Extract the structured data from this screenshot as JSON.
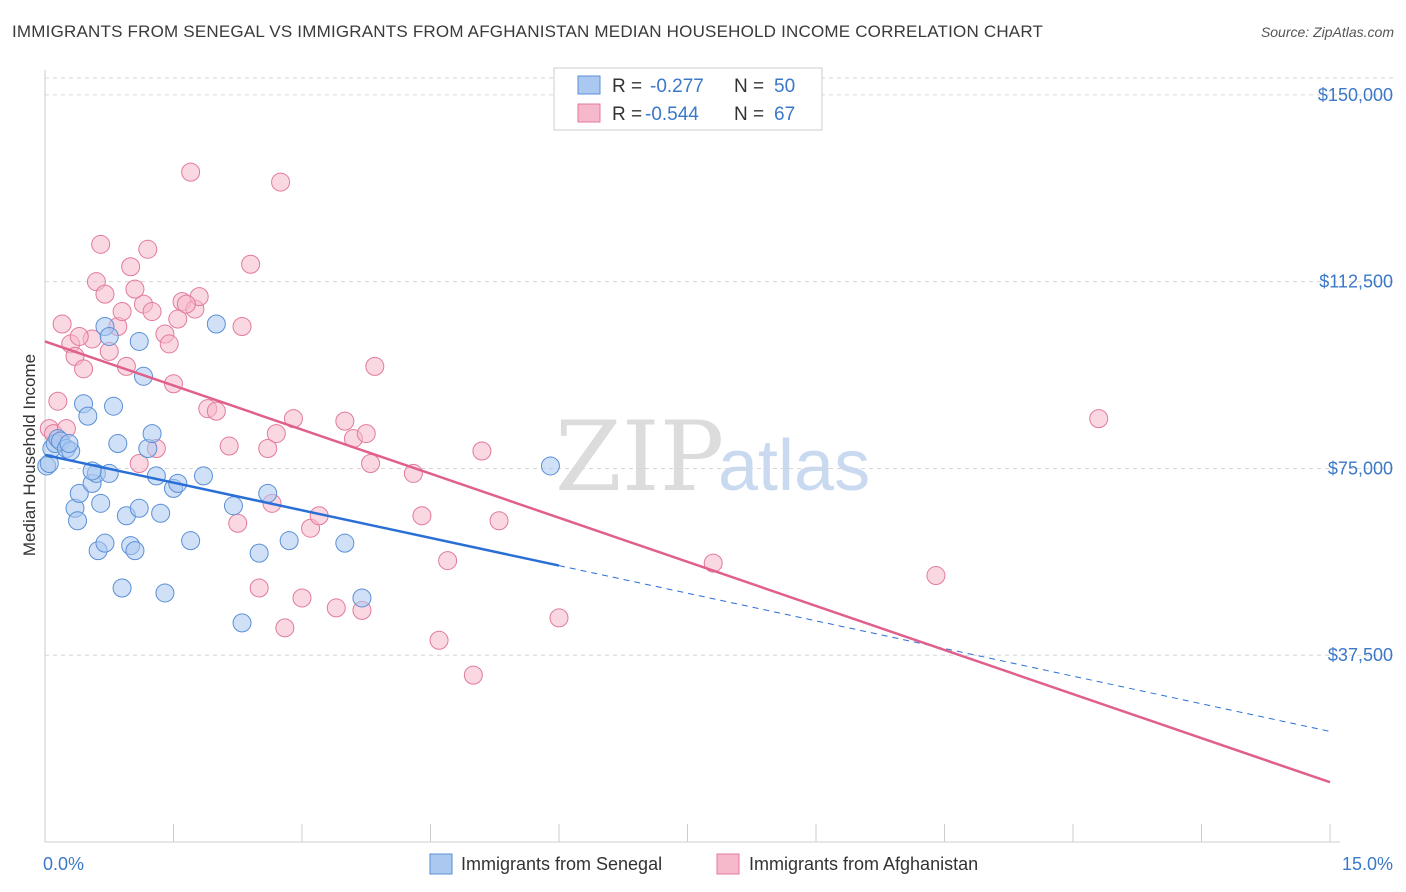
{
  "title": "IMMIGRANTS FROM SENEGAL VS IMMIGRANTS FROM AFGHANISTAN MEDIAN HOUSEHOLD INCOME CORRELATION CHART",
  "source": "Source: ZipAtlas.com",
  "watermark": {
    "zip": "ZIP",
    "atlas": "atlas"
  },
  "colors": {
    "senegal_fill": "#aac8f0",
    "senegal_stroke": "#5b8fd6",
    "senegal_line": "#2a6fd6",
    "afghan_fill": "#f6b8cb",
    "afghan_stroke": "#e27a9c",
    "afghan_line": "#e0608b",
    "tick": "#3b78c8",
    "grid": "#d6d6d6"
  },
  "legend": {
    "rows": [
      {
        "r_label": "R =",
        "r_value": "-0.277",
        "n_label": "N =",
        "n_value": "50"
      },
      {
        "r_label": "R =",
        "r_value": "-0.544",
        "n_label": "N =",
        "n_value": "67"
      }
    ]
  },
  "chart_data": {
    "type": "scatter",
    "title": "IMMIGRANTS FROM SENEGAL VS IMMIGRANTS FROM AFGHANISTAN MEDIAN HOUSEHOLD INCOME CORRELATION CHART",
    "xlabel": "",
    "ylabel": "Median Household Income",
    "xlim": [
      0,
      15
    ],
    "ylim": [
      0,
      155000
    ],
    "x_tick_labels": [
      "0.0%",
      "15.0%"
    ],
    "y_ticks": [
      37500,
      75000,
      112500,
      150000
    ],
    "y_tick_labels": [
      "$37,500",
      "$75,000",
      "$112,500",
      "$150,000"
    ],
    "series": [
      {
        "name": "Immigrants from Senegal",
        "r": -0.277,
        "n": 50,
        "trend": {
          "x0": 0,
          "y0": 77700,
          "x1": 6,
          "y1": 55500,
          "dash_to_x": 15,
          "dash_to_y": 22200
        },
        "points": [
          [
            0.02,
            75500
          ],
          [
            0.05,
            76000
          ],
          [
            0.08,
            79000
          ],
          [
            0.12,
            80000
          ],
          [
            0.15,
            81000
          ],
          [
            0.18,
            80500
          ],
          [
            0.25,
            79000
          ],
          [
            0.3,
            78500
          ],
          [
            0.35,
            67000
          ],
          [
            0.4,
            70000
          ],
          [
            0.45,
            88000
          ],
          [
            0.5,
            85500
          ],
          [
            0.55,
            72000
          ],
          [
            0.6,
            74000
          ],
          [
            0.62,
            58500
          ],
          [
            0.7,
            60000
          ],
          [
            0.75,
            74000
          ],
          [
            0.7,
            103500
          ],
          [
            0.75,
            101500
          ],
          [
            0.8,
            87500
          ],
          [
            0.85,
            80000
          ],
          [
            0.9,
            51000
          ],
          [
            0.95,
            65500
          ],
          [
            1.0,
            59500
          ],
          [
            1.05,
            58500
          ],
          [
            1.1,
            100500
          ],
          [
            1.15,
            93500
          ],
          [
            1.2,
            79000
          ],
          [
            1.25,
            82000
          ],
          [
            1.3,
            73500
          ],
          [
            1.35,
            66000
          ],
          [
            1.4,
            50000
          ],
          [
            1.5,
            71000
          ],
          [
            1.7,
            60500
          ],
          [
            1.85,
            73500
          ],
          [
            2.0,
            104000
          ],
          [
            2.2,
            67500
          ],
          [
            2.3,
            44000
          ],
          [
            2.5,
            58000
          ],
          [
            2.6,
            70000
          ],
          [
            2.85,
            60500
          ],
          [
            3.5,
            60000
          ],
          [
            3.7,
            49000
          ],
          [
            5.9,
            75500
          ],
          [
            0.28,
            80000
          ],
          [
            0.55,
            74500
          ],
          [
            0.65,
            68000
          ],
          [
            1.1,
            67000
          ],
          [
            1.55,
            72000
          ],
          [
            0.38,
            64500
          ]
        ]
      },
      {
        "name": "Immigrants from Afghanistan",
        "r": -0.544,
        "n": 67,
        "trend": {
          "x0": 0,
          "y0": 100500,
          "x1": 15,
          "y1": 12000
        },
        "points": [
          [
            0.05,
            83000
          ],
          [
            0.1,
            82000
          ],
          [
            0.15,
            88500
          ],
          [
            0.2,
            104000
          ],
          [
            0.25,
            83000
          ],
          [
            0.3,
            100000
          ],
          [
            0.35,
            97500
          ],
          [
            0.45,
            95000
          ],
          [
            0.55,
            101000
          ],
          [
            0.6,
            112500
          ],
          [
            0.65,
            120000
          ],
          [
            0.7,
            110000
          ],
          [
            0.75,
            98500
          ],
          [
            0.85,
            103500
          ],
          [
            0.9,
            106500
          ],
          [
            0.95,
            95500
          ],
          [
            1.0,
            115500
          ],
          [
            1.1,
            76000
          ],
          [
            1.15,
            108000
          ],
          [
            1.2,
            119000
          ],
          [
            1.25,
            106500
          ],
          [
            1.3,
            79000
          ],
          [
            1.4,
            102000
          ],
          [
            1.45,
            100000
          ],
          [
            1.5,
            92000
          ],
          [
            1.55,
            105000
          ],
          [
            1.6,
            108500
          ],
          [
            1.7,
            134500
          ],
          [
            1.75,
            107000
          ],
          [
            1.8,
            109500
          ],
          [
            1.9,
            87000
          ],
          [
            2.0,
            86500
          ],
          [
            2.15,
            79500
          ],
          [
            2.25,
            64000
          ],
          [
            2.3,
            103500
          ],
          [
            2.4,
            116000
          ],
          [
            2.5,
            51000
          ],
          [
            2.6,
            79000
          ],
          [
            2.65,
            68000
          ],
          [
            2.7,
            82000
          ],
          [
            2.75,
            132500
          ],
          [
            2.8,
            43000
          ],
          [
            2.9,
            85000
          ],
          [
            3.0,
            49000
          ],
          [
            3.1,
            63000
          ],
          [
            3.2,
            65500
          ],
          [
            3.4,
            47000
          ],
          [
            3.5,
            84500
          ],
          [
            3.6,
            81000
          ],
          [
            3.7,
            46500
          ],
          [
            3.75,
            82000
          ],
          [
            3.8,
            76000
          ],
          [
            3.85,
            95500
          ],
          [
            4.3,
            74000
          ],
          [
            4.4,
            65500
          ],
          [
            4.6,
            40500
          ],
          [
            4.7,
            56500
          ],
          [
            5.0,
            33500
          ],
          [
            5.1,
            78500
          ],
          [
            5.3,
            64500
          ],
          [
            6.0,
            45000
          ],
          [
            7.8,
            56000
          ],
          [
            10.4,
            53500
          ],
          [
            12.3,
            85000
          ],
          [
            1.05,
            111000
          ],
          [
            1.65,
            108000
          ],
          [
            0.4,
            101500
          ]
        ]
      }
    ]
  },
  "bottom_legend": [
    "Immigrants from Senegal",
    "Immigrants from Afghanistan"
  ]
}
